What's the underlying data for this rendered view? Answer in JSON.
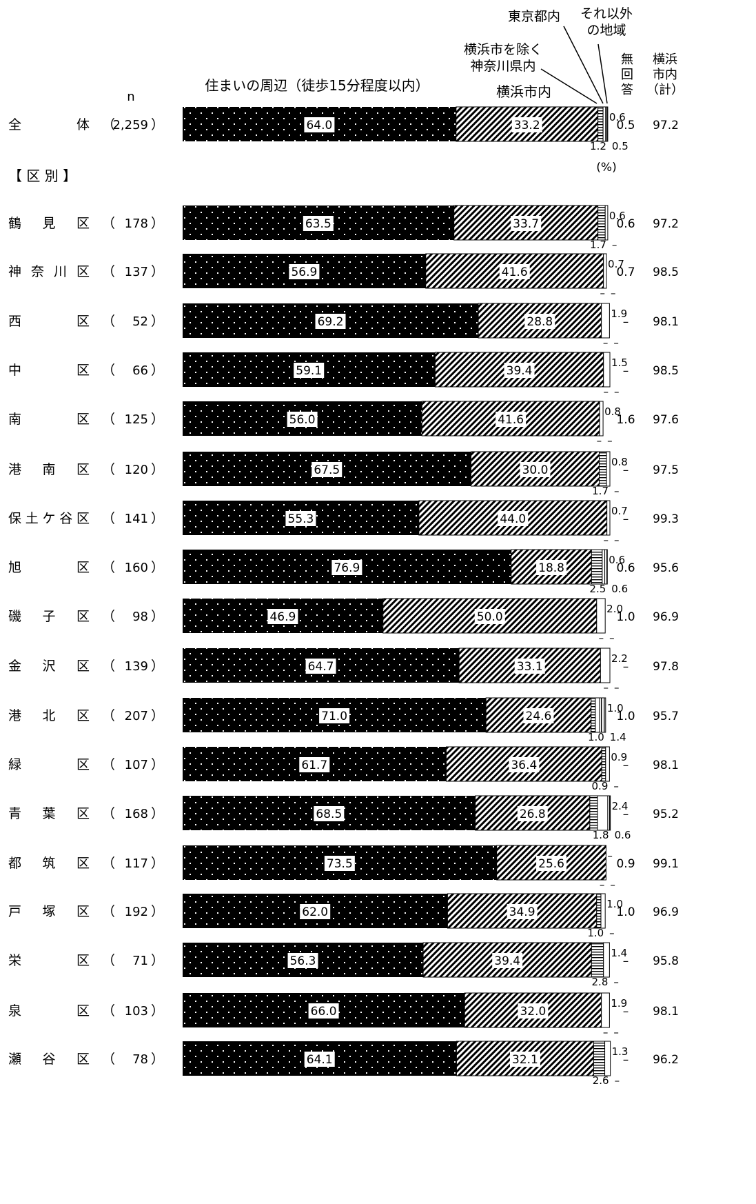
{
  "chart_data": {
    "type": "bar",
    "stacked": true,
    "orientation": "horizontal",
    "unit_label": "(%)",
    "headers": {
      "n": "n",
      "series_labels": [
        "住まいの周辺（徒歩15分程度以内）",
        "横浜市内",
        "横浜市を除く\n神奈川県内",
        "東京都内",
        "それ以外\nの地域"
      ],
      "no_answer": "無\n回\n答",
      "yokohama_total": "横浜\n市内\n（計）"
    },
    "series": [
      {
        "name": "住まいの周辺（徒歩15分程度以内）"
      },
      {
        "name": "横浜市内"
      },
      {
        "name": "横浜市を除く神奈川県内"
      },
      {
        "name": "東京都内"
      },
      {
        "name": "それ以外の地域"
      }
    ],
    "section_label": "【 区 別 】",
    "rows": [
      {
        "label": "全　　　体",
        "n": "2,259",
        "values": [
          64.0,
          33.2,
          1.2,
          0.6,
          0.5
        ],
        "small_labels": [
          "1.2",
          "0.6",
          "0.5"
        ],
        "no_answer": "0.5",
        "total": "97.2"
      },
      {
        "label": "鶴　見　区",
        "n": "178",
        "values": [
          63.5,
          33.7,
          1.7,
          0.6,
          0
        ],
        "small_labels": [
          "1.7",
          "0.6",
          "–"
        ],
        "no_answer": "0.6",
        "total": "97.2"
      },
      {
        "label": "神奈川区",
        "n": "137",
        "values": [
          56.9,
          41.6,
          0,
          0.7,
          0
        ],
        "small_labels": [
          "–",
          "0.7",
          "–"
        ],
        "no_answer": "0.7",
        "total": "98.5"
      },
      {
        "label": "西　　　区",
        "n": "52",
        "values": [
          69.2,
          28.8,
          0,
          1.9,
          0
        ],
        "small_labels": [
          "–",
          "1.9",
          "–"
        ],
        "no_answer": "–",
        "total": "98.1"
      },
      {
        "label": "中　　　区",
        "n": "66",
        "values": [
          59.1,
          39.4,
          0,
          1.5,
          0
        ],
        "small_labels": [
          "–",
          "1.5",
          "–"
        ],
        "no_answer": "–",
        "total": "98.5"
      },
      {
        "label": "南　　　区",
        "n": "125",
        "values": [
          56.0,
          41.6,
          0,
          0.8,
          0
        ],
        "small_labels": [
          "–",
          "0.8",
          "–"
        ],
        "no_answer": "1.6",
        "total": "97.6"
      },
      {
        "label": "港　南　区",
        "n": "120",
        "values": [
          67.5,
          30.0,
          1.7,
          0.8,
          0
        ],
        "small_labels": [
          "1.7",
          "0.8",
          "–"
        ],
        "no_answer": "–",
        "total": "97.5"
      },
      {
        "label": "保土ケ谷区",
        "n": "141",
        "values": [
          55.3,
          44.0,
          0,
          0.7,
          0
        ],
        "small_labels": [
          "–",
          "0.7",
          "–"
        ],
        "no_answer": "–",
        "total": "99.3"
      },
      {
        "label": "旭　　　区",
        "n": "160",
        "values": [
          76.9,
          18.8,
          2.5,
          0.6,
          0.6
        ],
        "small_labels": [
          "2.5",
          "0.6",
          "0.6"
        ],
        "no_answer": "0.6",
        "total": "95.6"
      },
      {
        "label": "磯　子　区",
        "n": "98",
        "values": [
          46.9,
          50.0,
          0,
          2.0,
          0
        ],
        "small_labels": [
          "–",
          "2.0",
          "–"
        ],
        "no_answer": "1.0",
        "total": "96.9"
      },
      {
        "label": "金　沢　区",
        "n": "139",
        "values": [
          64.7,
          33.1,
          0,
          2.2,
          0
        ],
        "small_labels": [
          "–",
          "2.2",
          "–"
        ],
        "no_answer": "–",
        "total": "97.8"
      },
      {
        "label": "港　北　区",
        "n": "207",
        "values": [
          71.0,
          24.6,
          1.0,
          1.0,
          1.4
        ],
        "small_labels": [
          "1.0",
          "1.0",
          "1.4"
        ],
        "no_answer": "1.0",
        "total": "95.7"
      },
      {
        "label": "緑　　　区",
        "n": "107",
        "values": [
          61.7,
          36.4,
          0.9,
          0.9,
          0
        ],
        "small_labels": [
          "0.9",
          "0.9",
          "–"
        ],
        "no_answer": "–",
        "total": "98.1"
      },
      {
        "label": "青　葉　区",
        "n": "168",
        "values": [
          68.5,
          26.8,
          1.8,
          2.4,
          0.6
        ],
        "small_labels": [
          "1.8",
          "2.4",
          "0.6"
        ],
        "no_answer": "–",
        "total": "95.2"
      },
      {
        "label": "都　筑　区",
        "n": "117",
        "values": [
          73.5,
          25.6,
          0,
          0,
          0
        ],
        "small_labels": [
          "–",
          "–",
          "–"
        ],
        "no_answer": "0.9",
        "total": "99.1"
      },
      {
        "label": "戸　塚　区",
        "n": "192",
        "values": [
          62.0,
          34.9,
          1.0,
          1.0,
          0
        ],
        "small_labels": [
          "1.0",
          "1.0",
          "–"
        ],
        "no_answer": "1.0",
        "total": "96.9"
      },
      {
        "label": "栄　　　区",
        "n": "71",
        "values": [
          56.3,
          39.4,
          2.8,
          1.4,
          0
        ],
        "small_labels": [
          "2.8",
          "1.4",
          "–"
        ],
        "no_answer": "–",
        "total": "95.8"
      },
      {
        "label": "泉　　　区",
        "n": "103",
        "values": [
          66.0,
          32.0,
          0,
          1.9,
          0
        ],
        "small_labels": [
          "–",
          "1.9",
          "–"
        ],
        "no_answer": "–",
        "total": "98.1"
      },
      {
        "label": "瀬　谷　区",
        "n": "78",
        "values": [
          64.1,
          32.1,
          2.6,
          1.3,
          0
        ],
        "small_labels": [
          "2.6",
          "1.3",
          "–"
        ],
        "no_answer": "–",
        "total": "96.2"
      }
    ]
  }
}
